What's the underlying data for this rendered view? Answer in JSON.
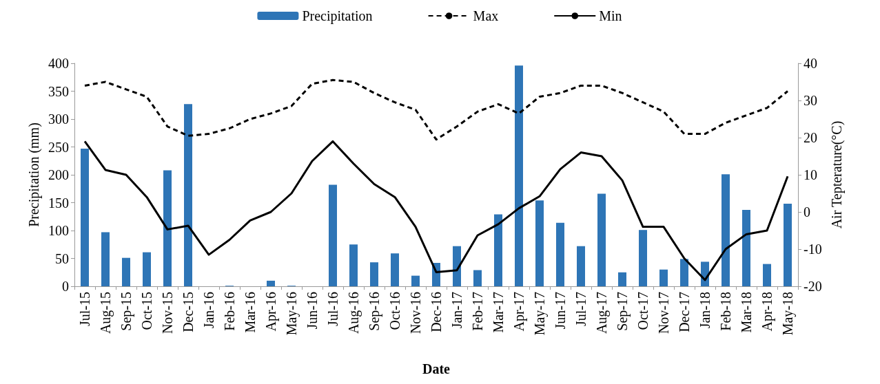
{
  "chart_data": {
    "type": "bar",
    "xlabel": "Date",
    "ylabel": "Precipitation (mm)",
    "y2label": "Air Tepterature(°C)",
    "categories": [
      "Jul-15",
      "Aug-15",
      "Sep-15",
      "Oct-15",
      "Nov-15",
      "Dec-15",
      "Jan-16",
      "Feb-16",
      "Mar-16",
      "Apr-16",
      "May-16",
      "Jun-16",
      "Jul-16",
      "Aug-16",
      "Sep-16",
      "Oct-16",
      "Nov-16",
      "Dec-16",
      "Jan-17",
      "Feb-17",
      "Mar-17",
      "Apr-17",
      "May-17",
      "Jun-17",
      "Jul-17",
      "Aug-17",
      "Sep-17",
      "Oct-17",
      "Nov-17",
      "Dec-17",
      "Jan-18",
      "Feb-18",
      "Mar-18",
      "Apr-18",
      "May-18"
    ],
    "series": [
      {
        "name": "Precipitation",
        "color": "#2e75b6",
        "values": [
          247,
          97,
          51,
          61,
          208,
          327,
          0,
          1,
          0,
          10,
          1,
          0,
          182,
          75,
          43,
          59,
          19,
          42,
          72,
          29,
          129,
          396,
          154,
          114,
          72,
          166,
          25,
          101,
          30,
          49,
          44,
          201,
          137,
          40,
          148
        ]
      },
      {
        "name": "Max",
        "type": "line",
        "axis": "y2",
        "color": "#000000",
        "line_style": "dashed",
        "values": [
          34,
          35,
          33,
          31,
          23,
          20.5,
          21,
          22.5,
          25,
          26.5,
          28.5,
          34.5,
          35.5,
          35,
          32,
          29.5,
          27.5,
          19.5,
          23,
          27,
          29,
          26.5,
          31,
          32,
          34,
          34,
          32,
          29.5,
          27,
          21,
          21,
          24,
          26,
          28,
          32.5
        ]
      },
      {
        "name": "Min",
        "type": "line",
        "axis": "y2",
        "color": "#000000",
        "line_style": "solid",
        "values": [
          19,
          11.3,
          10,
          4,
          -4.7,
          -3.7,
          -11.5,
          -7.5,
          -2.3,
          0,
          5,
          13.7,
          19,
          13,
          7.5,
          4,
          -4,
          -16.2,
          -15.7,
          -6.3,
          -3.3,
          1,
          4.2,
          11.5,
          16,
          15,
          8.5,
          -4,
          -4,
          -12.5,
          -18.3,
          -10,
          -6,
          -5,
          9.6
        ]
      }
    ],
    "ylim": [
      0,
      400
    ],
    "yticks": [
      0,
      50,
      100,
      150,
      200,
      250,
      300,
      350,
      400
    ],
    "y2lim": [
      -20,
      40
    ],
    "y2ticks": [
      -20,
      -10,
      0,
      10,
      20,
      30,
      40
    ],
    "grid": false,
    "legend": "top",
    "marker": "none"
  }
}
